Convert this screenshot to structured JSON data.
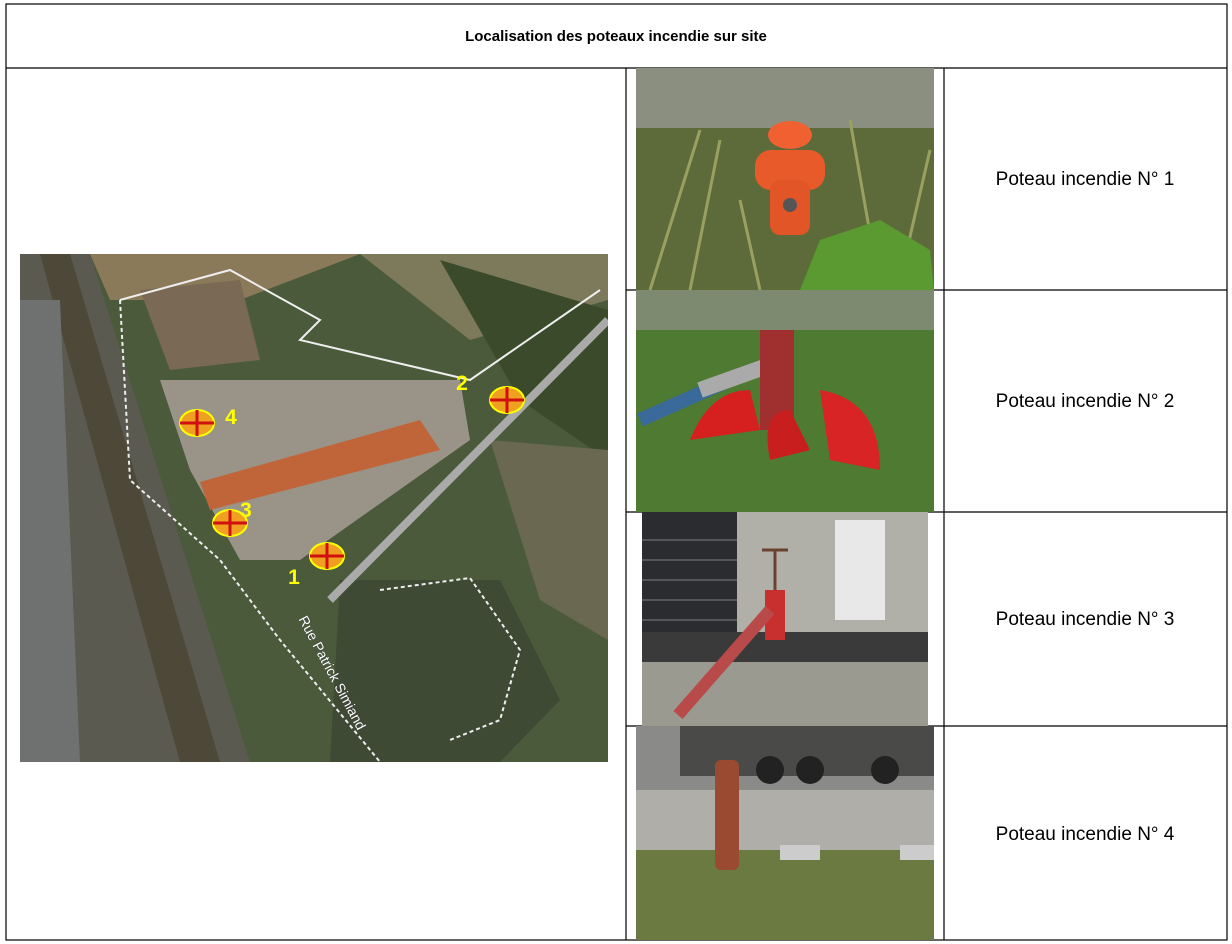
{
  "header": {
    "title": "Localisation des poteaux incendie sur site"
  },
  "map": {
    "markers": [
      {
        "label": "1"
      },
      {
        "label": "2"
      },
      {
        "label": "3"
      },
      {
        "label": "4"
      }
    ],
    "road_label": "Rue Patrick Simiand"
  },
  "rows": [
    {
      "label": "Poteau incendie N° 1"
    },
    {
      "label": "Poteau incendie N° 2"
    },
    {
      "label": "Poteau incendie N° 3"
    },
    {
      "label": "Poteau incendie N° 4"
    }
  ]
}
